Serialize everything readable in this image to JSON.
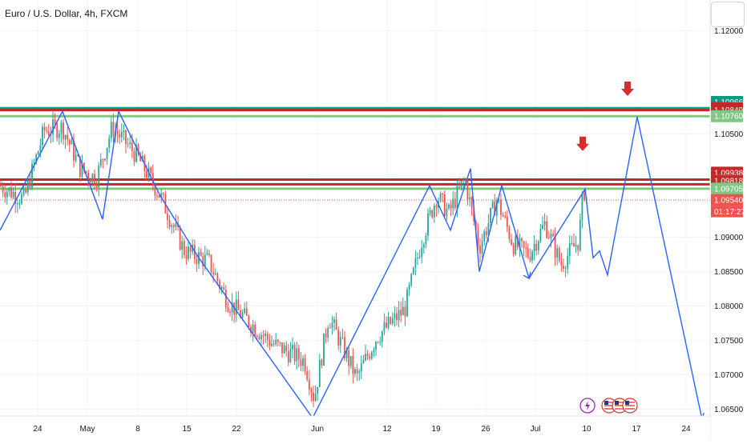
{
  "title": "Euro / U.S. Dollar, 4h, FXCM",
  "colors": {
    "up": "#26a69a",
    "down": "#ef5350",
    "wave": "#2962ff",
    "resistance": "#c62828",
    "support": "#4caf50",
    "teal_line": "#089981",
    "grid": "#f0f3fa",
    "axis_text": "#131722",
    "arrow": "#d32f2f"
  },
  "chart_data": {
    "type": "candlestick",
    "title": "Euro / U.S. Dollar, 4h, FXCM",
    "instrument": "EUR/USD",
    "interval": "4h",
    "y_range": [
      1.0605,
      1.1245
    ],
    "x_tick_labels": [
      "24",
      "May",
      "8",
      "15",
      "22",
      "Jun",
      "12",
      "19",
      "26",
      "Jul",
      "10",
      "17",
      "24"
    ],
    "y_tick_labels": [
      "1.12000",
      "1.10500",
      "1.09000",
      "1.08500",
      "1.08000",
      "1.07500",
      "1.07000",
      "1.06500"
    ],
    "price_tags": [
      {
        "label": "1.10966",
        "value": 1.10966,
        "color": "#089981"
      },
      {
        "label": "1.10876",
        "value": 1.10876,
        "color": "#c62828"
      },
      {
        "label": "1.10849",
        "value": 1.10849,
        "color": "#c62828"
      },
      {
        "label": "1.10760",
        "value": 1.1076,
        "color": "#81c784"
      },
      {
        "label": "1.09938",
        "value": 1.09938,
        "color": "#c62828"
      },
      {
        "label": "1.09818",
        "value": 1.09818,
        "color": "#c62828"
      },
      {
        "label": "1.09705",
        "value": 1.09705,
        "color": "#81c784"
      },
      {
        "label": "1.09540",
        "value": 1.0954,
        "color": "#ef5350"
      }
    ],
    "countdown": "01:17:27",
    "horizontal_levels": [
      {
        "value": 1.10876,
        "kind": "teal"
      },
      {
        "value": 1.10849,
        "kind": "resistance"
      },
      {
        "value": 1.1076,
        "kind": "support"
      },
      {
        "value": 1.09838,
        "kind": "resistance"
      },
      {
        "value": 1.0977,
        "kind": "resistance"
      },
      {
        "value": 1.09705,
        "kind": "support"
      },
      {
        "value": 1.0954,
        "kind": "last-price"
      }
    ],
    "wave_path": [
      [
        0,
        1.091
      ],
      [
        78,
        1.1083
      ],
      [
        128,
        1.0926
      ],
      [
        148,
        1.1083
      ],
      [
        200,
        1.096
      ],
      [
        248,
        1.087
      ],
      [
        390,
        1.0637
      ],
      [
        536,
        1.0975
      ],
      [
        562,
        1.091
      ],
      [
        587,
        1.1
      ],
      [
        598,
        1.085
      ],
      [
        626,
        1.0975
      ],
      [
        660,
        1.084
      ],
      [
        730,
        1.097
      ],
      [
        740,
        1.087
      ],
      [
        748,
        1.088
      ],
      [
        758,
        1.0845
      ],
      [
        795,
        1.1075
      ],
      [
        876,
        1.0635
      ]
    ],
    "wave_arrowheads": [
      [
        660,
        1.084
      ],
      [
        876,
        1.0635
      ]
    ],
    "down_arrows": [
      [
        783,
        1.111
      ],
      [
        727,
        1.103
      ]
    ],
    "price_anchors": [
      [
        0,
        1.0975
      ],
      [
        30,
        1.0955
      ],
      [
        55,
        1.1055
      ],
      [
        78,
        1.106
      ],
      [
        100,
        1.1
      ],
      [
        120,
        1.0985
      ],
      [
        140,
        1.106
      ],
      [
        170,
        1.102
      ],
      [
        200,
        1.096
      ],
      [
        230,
        1.088
      ],
      [
        260,
        1.0865
      ],
      [
        285,
        1.0805
      ],
      [
        340,
        1.0745
      ],
      [
        380,
        1.072
      ],
      [
        392,
        1.0665
      ],
      [
        410,
        1.0785
      ],
      [
        445,
        1.0695
      ],
      [
        470,
        1.0755
      ],
      [
        505,
        1.0795
      ],
      [
        526,
        1.0895
      ],
      [
        545,
        1.096
      ],
      [
        560,
        1.0935
      ],
      [
        580,
        1.0985
      ],
      [
        598,
        1.0885
      ],
      [
        620,
        1.0955
      ],
      [
        640,
        1.089
      ],
      [
        660,
        1.0875
      ],
      [
        680,
        1.092
      ],
      [
        700,
        1.086
      ],
      [
        712,
        1.088
      ],
      [
        722,
        1.0895
      ],
      [
        728,
        1.097
      ],
      [
        734,
        1.095
      ]
    ]
  },
  "icons": {
    "flash": "lightning-icon",
    "events": "us-flag-icon"
  }
}
